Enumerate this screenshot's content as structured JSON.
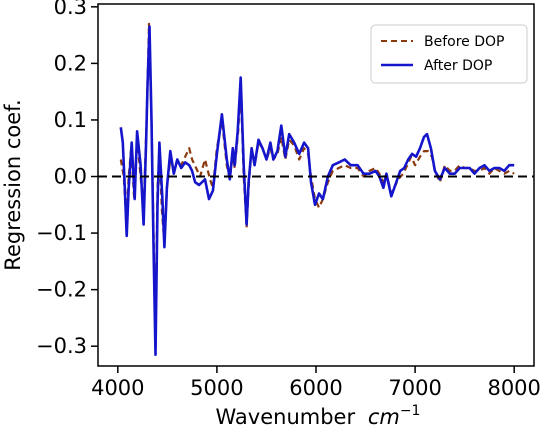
{
  "chart_data": {
    "type": "line",
    "xlabel": "Wavenumber",
    "xlabel_unit": "cm",
    "xlabel_unit_exp": "−1",
    "ylabel": "Regression coef.",
    "xlim": [
      3800,
      8200
    ],
    "ylim": [
      -0.335,
      0.305
    ],
    "x_ticks": [
      4000,
      5000,
      6000,
      7000,
      8000
    ],
    "x_tick_labels": [
      "4000",
      "5000",
      "6000",
      "7000",
      "8000"
    ],
    "y_ticks": [
      0.3,
      0.2,
      0.1,
      0.0,
      -0.1,
      -0.2,
      -0.3
    ],
    "y_tick_labels": [
      "0.3",
      "0.2",
      "0.1",
      "0.0",
      "−0.1",
      "−0.2",
      "−0.3"
    ],
    "zero_line": true,
    "grid": false,
    "legend_position": "top-right",
    "series": [
      {
        "name": "Before DOP",
        "color": "#8B3A0E",
        "style": "dashed",
        "points": [
          [
            4030,
            0.03
          ],
          [
            4060,
            0.0
          ],
          [
            4085,
            -0.08
          ],
          [
            4110,
            0.0
          ],
          [
            4135,
            0.05
          ],
          [
            4165,
            -0.04
          ],
          [
            4195,
            0.07
          ],
          [
            4230,
            0.0
          ],
          [
            4260,
            -0.06
          ],
          [
            4290,
            0.1
          ],
          [
            4315,
            0.27
          ],
          [
            4340,
            0.1
          ],
          [
            4365,
            -0.14
          ],
          [
            4380,
            -0.29
          ],
          [
            4400,
            -0.02
          ],
          [
            4420,
            0.05
          ],
          [
            4445,
            -0.06
          ],
          [
            4470,
            -0.12
          ],
          [
            4495,
            -0.02
          ],
          [
            4530,
            0.03
          ],
          [
            4565,
            0.01
          ],
          [
            4600,
            0.03
          ],
          [
            4640,
            0.02
          ],
          [
            4680,
            0.035
          ],
          [
            4720,
            0.05
          ],
          [
            4750,
            0.03
          ],
          [
            4790,
            0.015
          ],
          [
            4830,
            0.0
          ],
          [
            4880,
            0.03
          ],
          [
            4930,
            -0.005
          ],
          [
            4960,
            -0.02
          ],
          [
            5000,
            0.05
          ],
          [
            5050,
            0.1
          ],
          [
            5100,
            0.02
          ],
          [
            5130,
            -0.005
          ],
          [
            5160,
            0.04
          ],
          [
            5180,
            0.015
          ],
          [
            5215,
            0.08
          ],
          [
            5240,
            0.16
          ],
          [
            5270,
            0.0
          ],
          [
            5300,
            -0.09
          ],
          [
            5320,
            -0.02
          ],
          [
            5350,
            0.05
          ],
          [
            5380,
            0.02
          ],
          [
            5420,
            0.06
          ],
          [
            5460,
            0.05
          ],
          [
            5500,
            0.03
          ],
          [
            5540,
            0.05
          ],
          [
            5570,
            0.03
          ],
          [
            5610,
            0.04
          ],
          [
            5650,
            0.07
          ],
          [
            5690,
            0.03
          ],
          [
            5730,
            0.065
          ],
          [
            5780,
            0.055
          ],
          [
            5830,
            0.03
          ],
          [
            5880,
            0.05
          ],
          [
            5920,
            0.04
          ],
          [
            5950,
            0.0
          ],
          [
            5990,
            -0.04
          ],
          [
            6030,
            -0.055
          ],
          [
            6070,
            -0.04
          ],
          [
            6120,
            -0.01
          ],
          [
            6170,
            0.01
          ],
          [
            6230,
            0.015
          ],
          [
            6290,
            0.02
          ],
          [
            6350,
            0.015
          ],
          [
            6420,
            0.015
          ],
          [
            6480,
            0.0
          ],
          [
            6540,
            0.01
          ],
          [
            6600,
            0.015
          ],
          [
            6640,
            0.005
          ],
          [
            6680,
            -0.01
          ],
          [
            6710,
            0.005
          ],
          [
            6760,
            -0.03
          ],
          [
            6790,
            -0.02
          ],
          [
            6830,
            -0.005
          ],
          [
            6880,
            0.005
          ],
          [
            6920,
            0.02
          ],
          [
            6960,
            0.035
          ],
          [
            7000,
            0.02
          ],
          [
            7050,
            0.035
          ],
          [
            7090,
            0.045
          ],
          [
            7130,
            0.045
          ],
          [
            7170,
            0.035
          ],
          [
            7200,
            0.01
          ],
          [
            7250,
            -0.01
          ],
          [
            7300,
            0.02
          ],
          [
            7350,
            0.01
          ],
          [
            7400,
            0.01
          ],
          [
            7450,
            0.02
          ],
          [
            7500,
            0.015
          ],
          [
            7550,
            0.015
          ],
          [
            7600,
            0.01
          ],
          [
            7650,
            0.01
          ],
          [
            7700,
            0.015
          ],
          [
            7750,
            0.005
          ],
          [
            7800,
            0.015
          ],
          [
            7850,
            0.01
          ],
          [
            7900,
            0.005
          ],
          [
            7950,
            0.01
          ],
          [
            8000,
            0.005
          ]
        ]
      },
      {
        "name": "After DOP",
        "color": "#1515cc",
        "style": "solid",
        "points": [
          [
            4030,
            0.087
          ],
          [
            4050,
            0.06
          ],
          [
            4070,
            -0.02
          ],
          [
            4090,
            -0.105
          ],
          [
            4110,
            -0.02
          ],
          [
            4140,
            0.06
          ],
          [
            4170,
            -0.04
          ],
          [
            4195,
            0.08
          ],
          [
            4230,
            0.02
          ],
          [
            4260,
            -0.085
          ],
          [
            4285,
            0.06
          ],
          [
            4300,
            0.16
          ],
          [
            4320,
            0.265
          ],
          [
            4340,
            0.1
          ],
          [
            4360,
            -0.12
          ],
          [
            4380,
            -0.315
          ],
          [
            4400,
            -0.05
          ],
          [
            4420,
            0.06
          ],
          [
            4450,
            -0.04
          ],
          [
            4470,
            -0.125
          ],
          [
            4495,
            -0.02
          ],
          [
            4530,
            0.045
          ],
          [
            4565,
            0.005
          ],
          [
            4600,
            0.03
          ],
          [
            4640,
            0.015
          ],
          [
            4680,
            0.025
          ],
          [
            4720,
            0.02
          ],
          [
            4750,
            0.01
          ],
          [
            4780,
            -0.01
          ],
          [
            4820,
            -0.015
          ],
          [
            4880,
            -0.005
          ],
          [
            4920,
            -0.04
          ],
          [
            4960,
            -0.025
          ],
          [
            5000,
            0.04
          ],
          [
            5050,
            0.11
          ],
          [
            5100,
            0.03
          ],
          [
            5130,
            -0.005
          ],
          [
            5160,
            0.05
          ],
          [
            5180,
            0.02
          ],
          [
            5210,
            0.08
          ],
          [
            5240,
            0.175
          ],
          [
            5270,
            0.02
          ],
          [
            5300,
            -0.085
          ],
          [
            5320,
            -0.01
          ],
          [
            5350,
            0.05
          ],
          [
            5380,
            0.02
          ],
          [
            5420,
            0.065
          ],
          [
            5460,
            0.05
          ],
          [
            5500,
            0.03
          ],
          [
            5540,
            0.06
          ],
          [
            5570,
            0.03
          ],
          [
            5610,
            0.045
          ],
          [
            5650,
            0.09
          ],
          [
            5690,
            0.035
          ],
          [
            5730,
            0.075
          ],
          [
            5780,
            0.06
          ],
          [
            5830,
            0.04
          ],
          [
            5880,
            0.06
          ],
          [
            5920,
            0.05
          ],
          [
            5950,
            -0.01
          ],
          [
            5990,
            -0.05
          ],
          [
            6030,
            -0.03
          ],
          [
            6070,
            -0.04
          ],
          [
            6120,
            0.0
          ],
          [
            6170,
            0.02
          ],
          [
            6230,
            0.025
          ],
          [
            6290,
            0.03
          ],
          [
            6350,
            0.02
          ],
          [
            6420,
            0.02
          ],
          [
            6480,
            0.005
          ],
          [
            6540,
            0.005
          ],
          [
            6600,
            0.01
          ],
          [
            6640,
            0.0
          ],
          [
            6680,
            -0.02
          ],
          [
            6710,
            0.005
          ],
          [
            6760,
            -0.035
          ],
          [
            6800,
            -0.015
          ],
          [
            6850,
            0.01
          ],
          [
            6890,
            0.015
          ],
          [
            6930,
            0.03
          ],
          [
            6970,
            0.04
          ],
          [
            7010,
            0.035
          ],
          [
            7050,
            0.05
          ],
          [
            7090,
            0.07
          ],
          [
            7120,
            0.075
          ],
          [
            7160,
            0.05
          ],
          [
            7200,
            0.01
          ],
          [
            7250,
            -0.005
          ],
          [
            7300,
            0.015
          ],
          [
            7350,
            0.005
          ],
          [
            7400,
            0.005
          ],
          [
            7450,
            0.015
          ],
          [
            7500,
            0.015
          ],
          [
            7550,
            0.015
          ],
          [
            7600,
            0.005
          ],
          [
            7650,
            0.015
          ],
          [
            7700,
            0.02
          ],
          [
            7750,
            0.01
          ],
          [
            7800,
            0.015
          ],
          [
            7850,
            0.015
          ],
          [
            7900,
            0.01
          ],
          [
            7950,
            0.02
          ],
          [
            8000,
            0.02
          ]
        ]
      }
    ]
  }
}
